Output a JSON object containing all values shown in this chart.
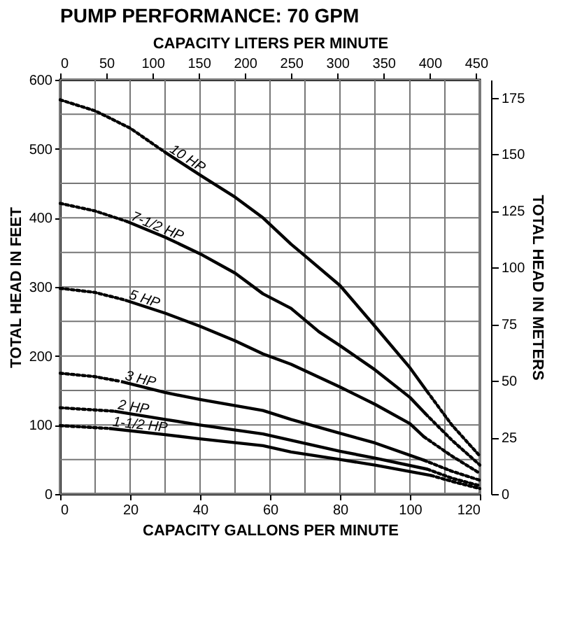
{
  "chart_data": {
    "type": "line",
    "title": "PUMP PERFORMANCE: 70 GPM",
    "xlabel": "CAPACITY GALLONS PER MINUTE",
    "ylabel": "TOTAL HEAD IN FEET",
    "y2label": "TOTAL HEAD IN METERS",
    "x2label": "CAPACITY LITERS PER MINUTE",
    "xlim": [
      0,
      120
    ],
    "ylim": [
      0,
      600
    ],
    "x2lim": [
      0,
      454.25
    ],
    "y2lim": [
      0,
      182.88
    ],
    "xticks": [
      0,
      {
        "value": 10,
        "label": null
      },
      20,
      {
        "value": 30,
        "label": null
      },
      40,
      {
        "value": 50,
        "label": null
      },
      60,
      {
        "value": 70,
        "label": null
      },
      80,
      {
        "value": 90,
        "label": null
      },
      100,
      {
        "value": 110,
        "label": null
      },
      120
    ],
    "yticks": [
      0,
      {
        "value": 50,
        "label": null
      },
      100,
      {
        "value": 150,
        "label": null
      },
      200,
      {
        "value": 250,
        "label": null
      },
      300,
      {
        "value": 350,
        "label": null
      },
      400,
      {
        "value": 450,
        "label": null
      },
      500,
      {
        "value": 550,
        "label": null
      },
      600
    ],
    "x2ticks": [
      0,
      50,
      100,
      150,
      200,
      250,
      300,
      350,
      400,
      450
    ],
    "y2ticks": [
      0,
      25,
      50,
      75,
      100,
      125,
      150,
      175
    ],
    "grid": true,
    "legend": false,
    "marker": "none",
    "series": [
      {
        "name": "10 HP",
        "color": "#000000",
        "line_style": "solid",
        "x": [
          30,
          40,
          50,
          58,
          66,
          70,
          80,
          90,
          100,
          105
        ],
        "values": [
          495,
          462,
          430,
          400,
          362,
          345,
          302,
          243,
          183,
          148
        ]
      },
      {
        "color": "#000000",
        "line_style": "dotted",
        "x": [
          0,
          10,
          20,
          30
        ],
        "values": [
          571,
          555,
          530,
          495
        ]
      },
      {
        "color": "#000000",
        "line_style": "dotted",
        "x": [
          105,
          112,
          120
        ],
        "values": [
          148,
          100,
          55
        ]
      },
      {
        "name": "7-1/2 HP",
        "color": "#000000",
        "line_style": "solid",
        "x": [
          19,
          30,
          40,
          50,
          58,
          66,
          74,
          80,
          90,
          100,
          104.5
        ],
        "values": [
          395,
          372,
          348,
          320,
          290,
          269,
          235,
          215,
          180,
          140,
          116
        ]
      },
      {
        "color": "#000000",
        "line_style": "dotted",
        "x": [
          0,
          10,
          19
        ],
        "values": [
          421,
          410,
          395
        ]
      },
      {
        "color": "#000000",
        "line_style": "dotted",
        "x": [
          104.5,
          112,
          120
        ],
        "values": [
          116,
          78,
          42
        ]
      },
      {
        "name": "5 HP",
        "color": "#000000",
        "line_style": "solid",
        "x": [
          18.5,
          30,
          40,
          50,
          58,
          66,
          80,
          90,
          100,
          104
        ],
        "values": [
          281,
          262,
          243,
          222,
          203,
          188,
          155,
          130,
          102,
          83
        ]
      },
      {
        "color": "#000000",
        "line_style": "dotted",
        "x": [
          0,
          10,
          18.5
        ],
        "values": [
          298,
          292,
          281
        ]
      },
      {
        "color": "#000000",
        "line_style": "dotted",
        "x": [
          104,
          112,
          120
        ],
        "values": [
          83,
          55,
          30
        ]
      },
      {
        "name": "3 HP",
        "color": "#000000",
        "line_style": "solid",
        "x": [
          17.4,
          30,
          40,
          58,
          66,
          80,
          90,
          104
        ],
        "values": [
          163,
          147,
          137,
          121,
          108,
          88,
          74,
          49
        ]
      },
      {
        "color": "#000000",
        "line_style": "dotted",
        "x": [
          0,
          10,
          17.4
        ],
        "values": [
          175,
          170,
          163
        ]
      },
      {
        "color": "#000000",
        "line_style": "dotted",
        "x": [
          104,
          112,
          120
        ],
        "values": [
          49,
          33,
          20
        ]
      },
      {
        "name": "2 HP",
        "color": "#000000",
        "line_style": "solid",
        "x": [
          15.5,
          30,
          40,
          58,
          66,
          80,
          90,
          105
        ],
        "values": [
          120,
          108,
          100,
          87,
          78,
          62,
          52,
          36
        ]
      },
      {
        "color": "#000000",
        "line_style": "dotted",
        "x": [
          0,
          15.5
        ],
        "values": [
          125,
          120
        ]
      },
      {
        "color": "#000000",
        "line_style": "dotted",
        "x": [
          105,
          112,
          120
        ],
        "values": [
          36,
          23,
          12
        ]
      },
      {
        "name": "1-1/2 HP",
        "color": "#000000",
        "line_style": "solid",
        "x": [
          14,
          30,
          40,
          58,
          66,
          80,
          90,
          106
        ],
        "values": [
          95,
          86,
          80,
          70,
          61,
          50,
          42,
          27
        ]
      },
      {
        "color": "#000000",
        "line_style": "dotted",
        "x": [
          0,
          14
        ],
        "values": [
          99,
          95
        ]
      },
      {
        "color": "#000000",
        "line_style": "dotted",
        "x": [
          106,
          113,
          120
        ],
        "values": [
          27,
          17,
          8
        ]
      }
    ]
  }
}
